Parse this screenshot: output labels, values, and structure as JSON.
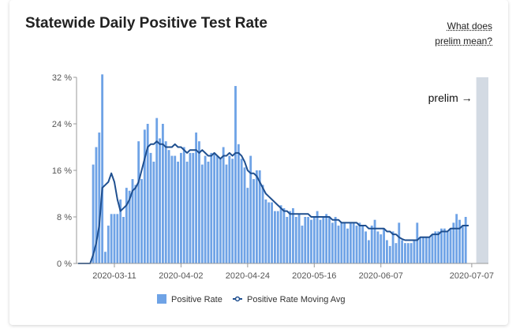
{
  "title": "Statewide Daily Positive Test Rate",
  "help_link": "What does prelim mean?",
  "prelim_label": "prelim →",
  "colors": {
    "bar": "#6fa3e6",
    "line": "#1f4f8f",
    "prelim_band": "#d3dae3",
    "axis": "#999999"
  },
  "chart_data": {
    "type": "bar",
    "title": "Statewide Daily Positive Test Rate",
    "x_start": "2020-02-28",
    "x_end": "2020-07-12",
    "prelim_start": "2020-07-09",
    "x_ticks": [
      "2020-03-11",
      "2020-04-02",
      "2020-04-24",
      "2020-05-16",
      "2020-06-07",
      "2020-07-07"
    ],
    "y_ticks": [
      "0 %",
      "8 %",
      "16 %",
      "24 %",
      "32 %"
    ],
    "ylim": [
      0,
      32
    ],
    "grid": false,
    "legend_position": "bottom",
    "series": [
      {
        "name": "Positive Rate",
        "type": "bar",
        "values": [
          0,
          0,
          0,
          0,
          0,
          17,
          20,
          22.5,
          32.5,
          2,
          6.5,
          8.5,
          8.5,
          8.5,
          11,
          8,
          13,
          12.5,
          14.5,
          13.5,
          21,
          14.5,
          23,
          24,
          19,
          17.5,
          25,
          21.5,
          24,
          21,
          19.5,
          18.5,
          18.5,
          17.5,
          19,
          20,
          17.5,
          19,
          19,
          22.5,
          21,
          17,
          18.5,
          17.5,
          19,
          19,
          18.5,
          18,
          20,
          17,
          18.5,
          18,
          30.5,
          20.5,
          18,
          16.5,
          13,
          18.5,
          14.5,
          16,
          16,
          13.5,
          11,
          10.5,
          10.5,
          9,
          9,
          10,
          9.5,
          8,
          9,
          9.5,
          8,
          8.5,
          6.5,
          8,
          8,
          7.5,
          8,
          9,
          7.5,
          8,
          8.5,
          8,
          7,
          8,
          6.5,
          7,
          7,
          6,
          7,
          7,
          6.5,
          7,
          6.5,
          5.5,
          4,
          6.5,
          7.5,
          5.5,
          5,
          6,
          4,
          3,
          5.5,
          3.5,
          7,
          4,
          3.5,
          3.5,
          3.5,
          4,
          7,
          4.5,
          4.5,
          4.5,
          4.5,
          5,
          5.5,
          5.5,
          6,
          6,
          5.5,
          6,
          7,
          8.5,
          7.5,
          6.5,
          8
        ]
      },
      {
        "name": "Positive Rate Moving Avg",
        "type": "line",
        "values": [
          0,
          0,
          0,
          0,
          0,
          1.5,
          3.5,
          6.5,
          13,
          13.5,
          14,
          15.5,
          14,
          11,
          9,
          9.5,
          10,
          11,
          12.5,
          13,
          14,
          16,
          18,
          20,
          20.5,
          20.5,
          21,
          20.5,
          20.5,
          20,
          20,
          20,
          20.5,
          20,
          20,
          19.5,
          19,
          19.5,
          19.5,
          19.5,
          19,
          19.5,
          19,
          18.5,
          18.5,
          19,
          18.5,
          18,
          18.5,
          18.5,
          19,
          18.5,
          19,
          19,
          18.5,
          17.5,
          16,
          15.5,
          15.5,
          15,
          14,
          13,
          12,
          11.5,
          11,
          10.5,
          10,
          9.5,
          9,
          9,
          8.5,
          8.5,
          8.5,
          8.5,
          8.5,
          8.5,
          8.5,
          8,
          8,
          8,
          8,
          8,
          8,
          8,
          7.5,
          7.5,
          7.5,
          7,
          7,
          7,
          7,
          7,
          7,
          6.5,
          6.5,
          6.5,
          6,
          6,
          6,
          6,
          6,
          6,
          5.5,
          5.5,
          5,
          5,
          4.5,
          4.2,
          4,
          4,
          4,
          4,
          4,
          4.5,
          4.5,
          4.5,
          4.5,
          5,
          5,
          5,
          5.5,
          5.5,
          5.5,
          6,
          6,
          6,
          6,
          6.5,
          6.5,
          6.5
        ]
      }
    ]
  }
}
